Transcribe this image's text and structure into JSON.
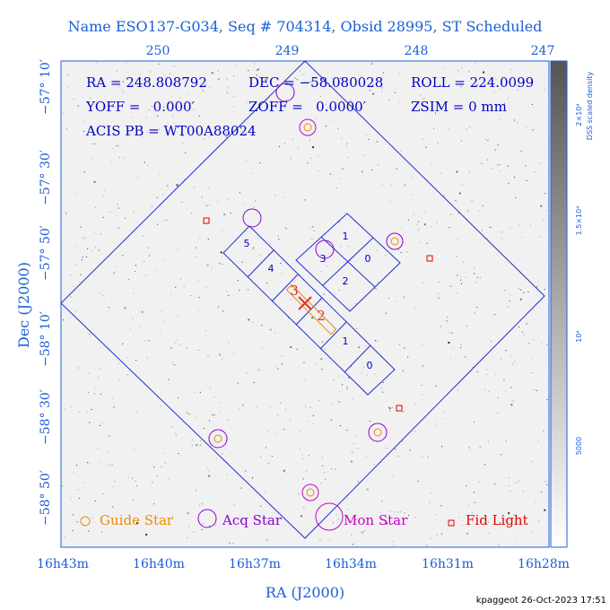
{
  "title": "Name ESO137-G034, Seq # 704314, Obsid 28995, ST Scheduled",
  "info": [
    "RA = 248.808792",
    "DEC = −58.080028",
    "ROLL = 224.0099",
    "YOFF =   0.000′",
    "ZOFF =   0.0000′",
    "ZSIM = 0 mm",
    "ACIS PB = WT00A88024"
  ],
  "top_ticks": [
    "250",
    "249",
    "248",
    "247"
  ],
  "bottom_ticks": [
    "16h43m",
    "16h40m",
    "16h37m",
    "16h34m",
    "16h31m",
    "16h28m"
  ],
  "left_ticks": [
    "−57° 10′",
    "−57° 30′",
    "−57° 50′",
    "−58° 10′",
    "−58° 30′",
    "−58° 50′"
  ],
  "x_label": "RA (J2000)",
  "y_label": "Dec (J2000)",
  "colorbar_ticks": [
    "2×10⁴",
    "1.5×10⁴",
    "10⁴",
    "5000"
  ],
  "colorbar_label": "DSS scaled density",
  "chips": [
    "5",
    "4",
    "3",
    "1",
    "0",
    "2",
    "1",
    "0"
  ],
  "slit_labels": [
    "3",
    "2"
  ],
  "legend": [
    "Guide Star",
    "Acq Star",
    "Mon Star",
    "Fid Light"
  ],
  "footer": "kpaggeot 26-Oct-2023 17:51"
}
